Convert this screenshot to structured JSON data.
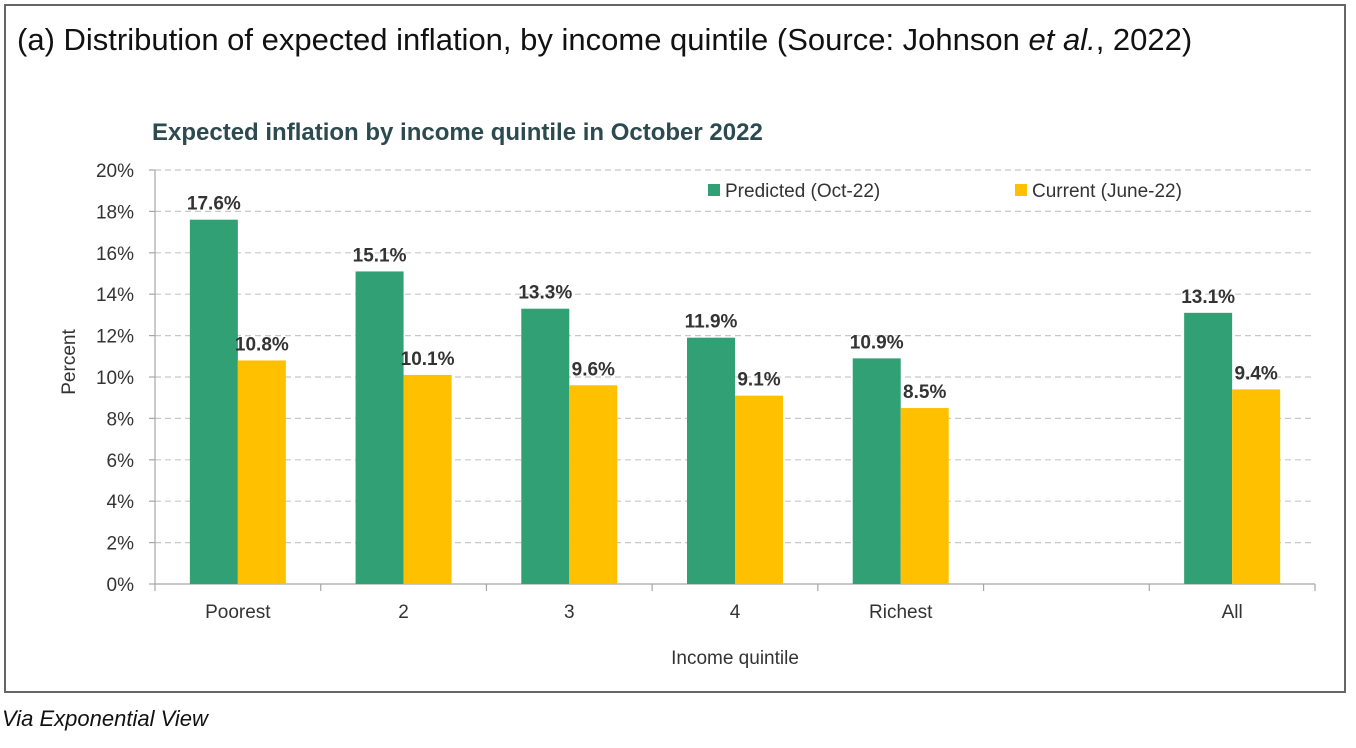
{
  "figure": {
    "title_prefix": "(a) Distribution of expected inflation, by income quintile (Source: Johnson ",
    "title_italic": "et al.",
    "title_suffix": ", 2022)"
  },
  "caption": "Via Exponential View",
  "chart_data": {
    "type": "bar",
    "title": "Expected inflation by income quintile in October 2022",
    "xlabel": "Income quintile",
    "ylabel": "Percent",
    "ylim": [
      0,
      20
    ],
    "yticks": [
      0,
      2,
      4,
      6,
      8,
      10,
      12,
      14,
      16,
      18,
      20
    ],
    "ytick_labels": [
      "0%",
      "2%",
      "4%",
      "6%",
      "8%",
      "10%",
      "12%",
      "14%",
      "16%",
      "18%",
      "20%"
    ],
    "grid": true,
    "legend_position": "top-right",
    "categories": [
      "Poorest",
      "2",
      "3",
      "4",
      "Richest",
      "",
      "All"
    ],
    "series": [
      {
        "name": "Predicted (Oct-22)",
        "color": "#31a074",
        "values": [
          17.6,
          15.1,
          13.3,
          11.9,
          10.9,
          null,
          13.1
        ],
        "labels": [
          "17.6%",
          "15.1%",
          "13.3%",
          "11.9%",
          "10.9%",
          "",
          "13.1%"
        ]
      },
      {
        "name": "Current (June-22)",
        "color": "#ffc000",
        "values": [
          10.8,
          10.1,
          9.6,
          9.1,
          8.5,
          null,
          9.4
        ],
        "labels": [
          "10.8%",
          "10.1%",
          "9.6%",
          "9.1%",
          "8.5%",
          "",
          "9.4%"
        ]
      }
    ]
  }
}
